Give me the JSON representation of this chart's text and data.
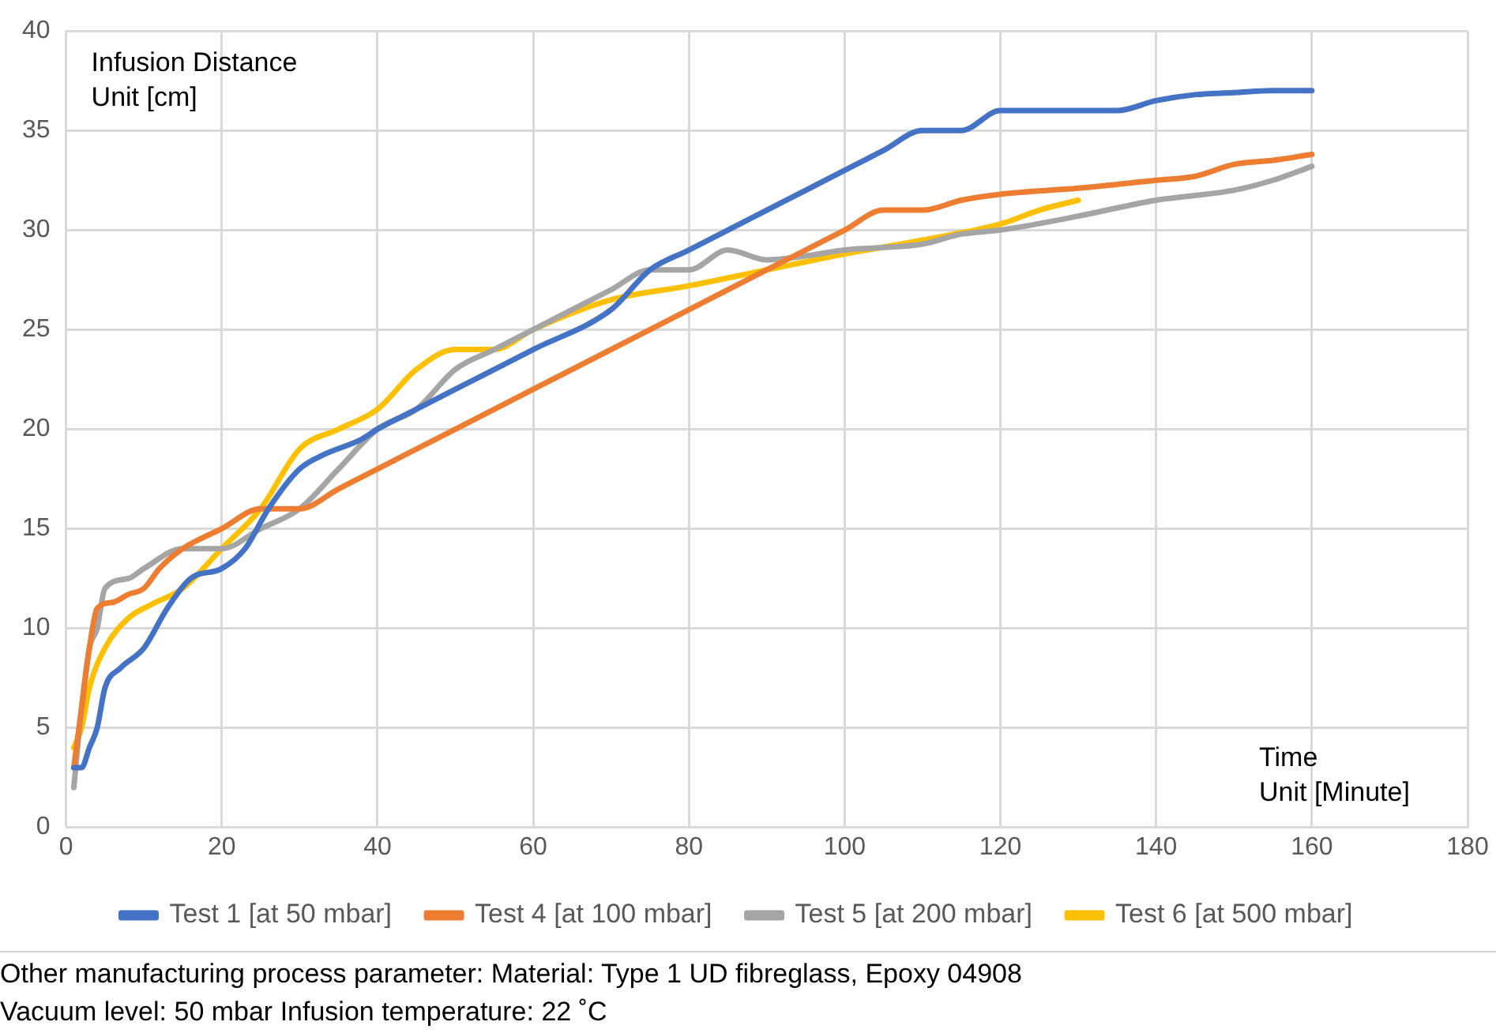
{
  "chart_data": {
    "type": "line",
    "xlabel": "Time\nUnit [Minute]",
    "ylabel": "Infusion Distance\nUnit [cm]",
    "xlim": [
      0,
      180
    ],
    "xticks": [
      0,
      20,
      40,
      60,
      80,
      100,
      120,
      140,
      160,
      180
    ],
    "ylim": [
      0,
      40
    ],
    "yticks": [
      0,
      5,
      10,
      15,
      20,
      25,
      30,
      35,
      40
    ],
    "grid": true,
    "legend": "bottom",
    "marker": "none",
    "line_style": "solid",
    "series": [
      {
        "name": "Test 1 [at 50 mbar]",
        "color": "#4472c4",
        "x": [
          1,
          2,
          3,
          4,
          5,
          7,
          10,
          13,
          16,
          20,
          23,
          26,
          30,
          33,
          38,
          40,
          45,
          50,
          60,
          70,
          75,
          80,
          90,
          100,
          105,
          110,
          115,
          120,
          125,
          130,
          135,
          140,
          145,
          150,
          155,
          160
        ],
        "values": [
          3,
          3,
          4,
          5,
          7,
          8,
          9,
          11,
          12.5,
          13,
          14,
          16,
          18,
          18.7,
          19.5,
          20,
          21,
          22,
          24,
          26,
          28,
          29,
          31,
          33,
          34,
          35,
          35,
          36,
          36,
          36,
          36,
          36.5,
          36.8,
          36.9,
          37,
          37
        ]
      },
      {
        "name": "Test 4 [at 100 mbar]",
        "color": "#ed7d31",
        "x": [
          1,
          2,
          3,
          4,
          6,
          8,
          10,
          12,
          15,
          20,
          25,
          30,
          35,
          40,
          60,
          80,
          100,
          105,
          110,
          115,
          120,
          130,
          140,
          145,
          150,
          155,
          160
        ],
        "values": [
          3,
          6,
          9,
          11,
          11.3,
          11.7,
          12,
          13,
          14,
          15,
          16,
          16,
          17,
          18,
          22,
          26,
          30,
          31,
          31,
          31.5,
          31.8,
          32.1,
          32.5,
          32.7,
          33.3,
          33.5,
          33.8
        ]
      },
      {
        "name": "Test 5 [at 200 mbar]",
        "color": "#a5a5a5",
        "x": [
          1,
          2,
          3,
          4,
          5,
          8,
          10,
          15,
          20,
          25,
          30,
          35,
          40,
          45,
          50,
          55,
          60,
          70,
          75,
          80,
          85,
          90,
          95,
          100,
          110,
          115,
          120,
          130,
          140,
          150,
          155,
          160
        ],
        "values": [
          2,
          6,
          9,
          10,
          12,
          12.5,
          13,
          14,
          14,
          15,
          16,
          18,
          20,
          21,
          23,
          24,
          25,
          27,
          28,
          28,
          29,
          28.5,
          28.7,
          29,
          29.3,
          29.8,
          30,
          30.7,
          31.5,
          32,
          32.5,
          33.2
        ]
      },
      {
        "name": "Test 6 [at 500 mbar]",
        "color": "#ffc000",
        "x": [
          1,
          2,
          3,
          5,
          8,
          11,
          15,
          20,
          25,
          30,
          35,
          40,
          45,
          50,
          55,
          60,
          70,
          80,
          90,
          100,
          110,
          120,
          125,
          130
        ],
        "values": [
          4,
          5,
          7,
          9,
          10.5,
          11.2,
          12,
          14,
          16,
          19,
          20,
          21,
          23,
          24,
          24,
          25,
          26.5,
          27.2,
          28,
          28.8,
          29.5,
          30.3,
          31,
          31.5
        ]
      }
    ],
    "annotations": [
      "Other manufacturing process parameter: Material: Type 1 UD fibreglass, Epoxy 04908",
      "Vacuum level: 50 mbar Infusion temperature: 22 ˚C"
    ]
  }
}
